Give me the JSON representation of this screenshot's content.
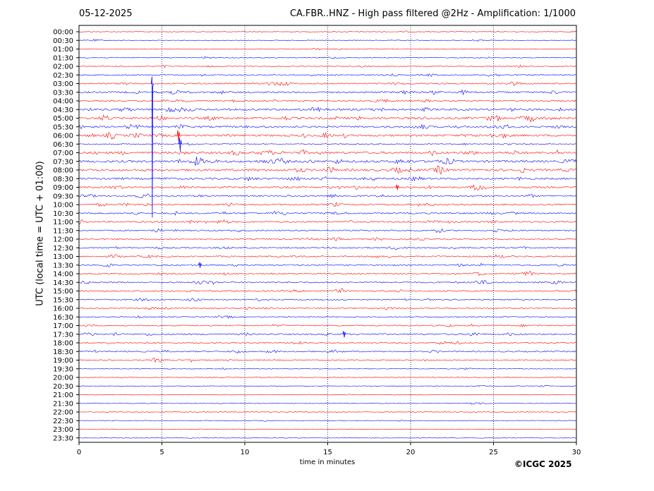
{
  "header": {
    "date": "05-12-2025",
    "title": "CA.FBR..HNZ - High pass filtered @2Hz - Amplification: 1/1000"
  },
  "footer": {
    "copyright": "©ICGC 2025"
  },
  "chart_data": {
    "type": "line",
    "title": "CA.FBR..HNZ - High pass filtered @2Hz - Amplification: 1/1000",
    "xlabel": "time in minutes",
    "ylabel": "UTC (local time = UTC + 01:00)",
    "xlim": [
      0,
      30
    ],
    "xticks": [
      "0",
      "5",
      "10",
      "15",
      "20",
      "25",
      "30"
    ],
    "grid": {
      "vertical_dotted": true
    },
    "colors": {
      "trace_a": "#0000ff",
      "trace_b": "#ff0000",
      "grid": "#000080"
    },
    "rows": [
      "00:00",
      "00:30",
      "01:00",
      "01:30",
      "02:00",
      "02:30",
      "03:00",
      "03:30",
      "04:00",
      "04:30",
      "05:00",
      "05:30",
      "06:00",
      "06:30",
      "07:00",
      "07:30",
      "08:00",
      "08:30",
      "09:00",
      "09:30",
      "10:00",
      "10:30",
      "11:00",
      "11:30",
      "12:00",
      "12:30",
      "13:00",
      "13:30",
      "14:00",
      "14:30",
      "15:00",
      "15:30",
      "16:00",
      "16:30",
      "17:00",
      "17:30",
      "18:00",
      "18:30",
      "19:00",
      "19:30",
      "20:00",
      "20:30",
      "21:00",
      "21:30",
      "22:00",
      "22:30",
      "23:00",
      "23:30"
    ],
    "row_activity": [
      0.15,
      0.15,
      0.12,
      0.2,
      0.25,
      0.4,
      0.5,
      0.7,
      0.5,
      0.9,
      1.0,
      0.8,
      0.9,
      0.3,
      1.0,
      1.0,
      1.0,
      0.8,
      0.7,
      0.6,
      0.6,
      0.6,
      0.6,
      0.5,
      0.5,
      0.5,
      0.5,
      0.5,
      0.5,
      0.5,
      0.5,
      0.4,
      0.4,
      0.3,
      0.4,
      0.6,
      0.4,
      0.5,
      0.4,
      0.15,
      0.12,
      0.12,
      0.12,
      0.12,
      0.12,
      0.12,
      0.1,
      0.1
    ],
    "events": [
      {
        "row": "03:00",
        "minute": 4.4,
        "amplitude": 1.0
      },
      {
        "row": "06:00",
        "minute": 6.0,
        "amplitude": 0.5
      },
      {
        "row": "06:30",
        "minute": 6.1,
        "amplitude": 0.6
      },
      {
        "row": "09:00",
        "minute": 19.2,
        "amplitude": 0.25
      },
      {
        "row": "13:30",
        "minute": 7.3,
        "amplitude": 0.25
      },
      {
        "row": "17:30",
        "minute": 16.0,
        "amplitude": 0.3
      }
    ]
  }
}
